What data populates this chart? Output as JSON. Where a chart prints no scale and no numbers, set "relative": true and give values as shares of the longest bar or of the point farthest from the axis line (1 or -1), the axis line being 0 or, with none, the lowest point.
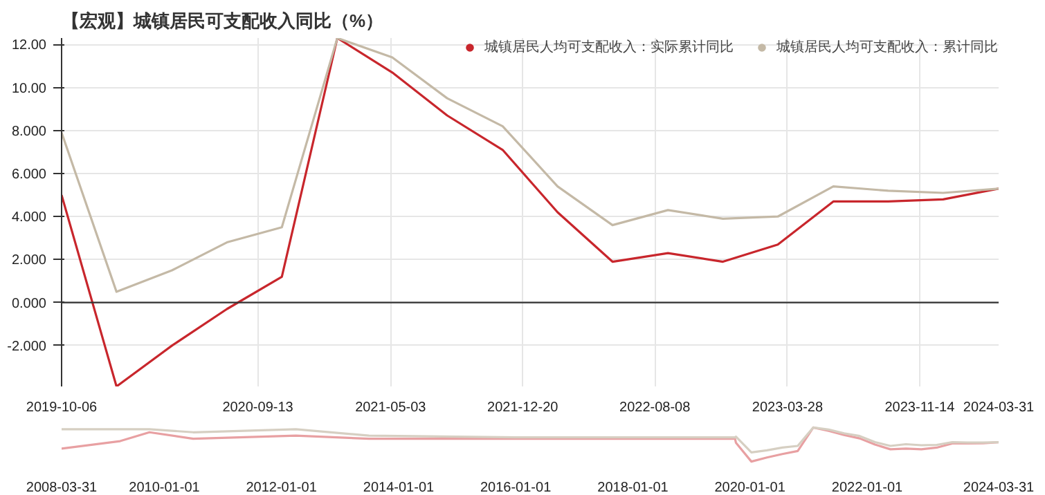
{
  "chart_data": [
    {
      "type": "line",
      "title": "【宏观】城镇居民可支配收入同比（%）",
      "x": [
        "2019-10-06",
        "2020-01-10",
        "2020-04-16",
        "2020-07-21",
        "2020-10-25",
        "2021-01-30",
        "2021-05-06",
        "2021-08-10",
        "2021-11-15",
        "2022-02-19",
        "2022-05-26",
        "2022-08-31",
        "2022-12-05",
        "2023-03-11",
        "2023-06-16",
        "2023-09-20",
        "2023-12-25",
        "2024-03-31"
      ],
      "series": [
        {
          "name": "城镇居民人均可支配收入：实际累计同比",
          "color": "#c8262c",
          "values": [
            5.0,
            -3.9,
            -2.0,
            -0.3,
            1.2,
            12.3,
            10.7,
            8.7,
            7.1,
            4.2,
            1.9,
            2.3,
            1.9,
            2.7,
            4.7,
            4.7,
            4.8,
            5.3
          ]
        },
        {
          "name": "城镇居民人均可支配收入：累计同比",
          "color": "#c4b9a6",
          "values": [
            7.9,
            0.5,
            1.5,
            2.8,
            3.5,
            12.3,
            11.4,
            9.5,
            8.2,
            5.4,
            3.6,
            4.3,
            3.9,
            4.0,
            5.4,
            5.2,
            5.1,
            5.3
          ]
        }
      ],
      "xlim": [
        "2019-10-06",
        "2024-03-31"
      ],
      "xticks": [
        "2019-10-06",
        "2020-09-13",
        "2021-05-03",
        "2021-12-20",
        "2022-08-08",
        "2023-03-28",
        "2023-11-14",
        "2024-03-31"
      ],
      "ylim": [
        -3.9,
        12.3
      ],
      "yticks": [
        {
          "value": -2,
          "label": "-2.000"
        },
        {
          "value": 0,
          "label": "0.000"
        },
        {
          "value": 2,
          "label": "2.000"
        },
        {
          "value": 4,
          "label": "4.000"
        },
        {
          "value": 6,
          "label": "6.000"
        },
        {
          "value": 8,
          "label": "8.000"
        },
        {
          "value": 10,
          "label": "10.00"
        },
        {
          "value": 12,
          "label": "12.00"
        }
      ],
      "ref_lines": [
        {
          "axis": "y",
          "value": 0,
          "color": "#333333"
        }
      ],
      "grid": true,
      "legend": "top right",
      "marker": "none",
      "line_style": "solid"
    },
    {
      "type": "line",
      "relative": true,
      "series": [
        {
          "color": "#e8a0a2",
          "x": [
            "2008-03-31",
            "2009-03-31",
            "2009-09-30",
            "2010-06-30",
            "2012-03-31",
            "2013-06-30",
            "2016-01-01",
            "2019-09-30",
            "2019-10-06",
            "2020-01-10",
            "2020-04-16",
            "2020-07-21",
            "2020-10-25",
            "2021-01-30",
            "2021-05-06",
            "2021-08-10",
            "2021-11-15",
            "2022-02-19",
            "2022-05-26",
            "2022-08-31",
            "2022-12-05",
            "2023-03-11",
            "2023-06-16",
            "2023-09-20",
            "2023-12-25",
            "2024-03-31"
          ],
          "values": [
            0.38,
            0.6,
            0.86,
            0.67,
            0.76,
            0.67,
            0.67,
            0.67,
            0.55,
            0,
            0.12,
            0.22,
            0.31,
            1,
            0.9,
            0.78,
            0.68,
            0.5,
            0.36,
            0.38,
            0.36,
            0.41,
            0.53,
            0.53,
            0.54,
            0.57
          ]
        },
        {
          "color": "#d6cfc2",
          "x": [
            "2008-03-31",
            "2009-09-30",
            "2010-06-30",
            "2012-03-31",
            "2013-06-30",
            "2016-01-01",
            "2019-09-30",
            "2019-10-06",
            "2020-01-10",
            "2020-04-16",
            "2020-07-21",
            "2020-10-25",
            "2021-01-30",
            "2021-05-06",
            "2021-08-10",
            "2021-11-15",
            "2022-02-19",
            "2022-05-26",
            "2022-08-31",
            "2022-12-05",
            "2023-03-11",
            "2023-06-16",
            "2023-09-20",
            "2023-12-25",
            "2024-03-31"
          ],
          "values": [
            0.95,
            0.95,
            0.86,
            0.95,
            0.76,
            0.71,
            0.71,
            0.73,
            0.27,
            0.33,
            0.41,
            0.46,
            1,
            0.94,
            0.83,
            0.75,
            0.57,
            0.46,
            0.51,
            0.48,
            0.49,
            0.57,
            0.56,
            0.56,
            0.57
          ]
        }
      ],
      "xlim": [
        "2008-03-31",
        "2024-03-31"
      ],
      "xticks": [
        "2008-03-31",
        "2010-01-01",
        "2012-01-01",
        "2014-01-01",
        "2016-01-01",
        "2018-01-01",
        "2020-01-01",
        "2022-01-01",
        "2024-03-31"
      ],
      "grid": false,
      "legend": false,
      "marker": "none",
      "line_style": "solid"
    }
  ]
}
